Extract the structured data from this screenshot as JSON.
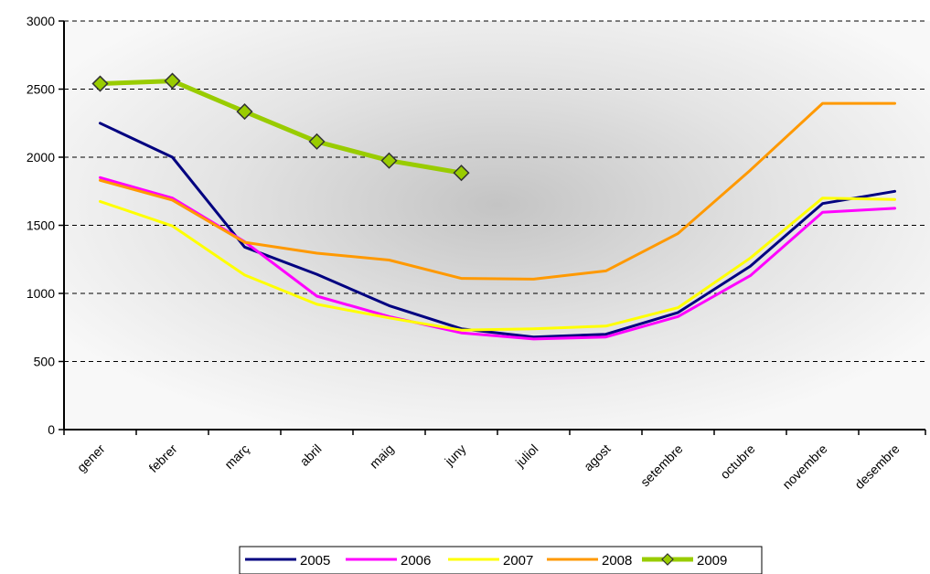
{
  "chart_data": {
    "type": "line",
    "title": "",
    "xlabel": "",
    "ylabel": "",
    "ylim": [
      0,
      3000
    ],
    "yticks": [
      0,
      500,
      1000,
      1500,
      2000,
      2500,
      3000
    ],
    "y_tick_labels": [
      "0",
      "500",
      "1000",
      "1500",
      "2000",
      "2500",
      "3000"
    ],
    "grid": "horizontal dashed",
    "legend_position": "bottom",
    "categories": [
      "gener",
      "febrer",
      "març",
      "abril",
      "maig",
      "juny",
      "juliol",
      "agost",
      "setembre",
      "octubre",
      "novembre",
      "desembre"
    ],
    "series": [
      {
        "name": "2005",
        "color": "#000080",
        "marker": "none",
        "values": [
          2250,
          2000,
          1340,
          1140,
          910,
          740,
          680,
          700,
          860,
          1200,
          1660,
          1750
        ]
      },
      {
        "name": "2006",
        "color": "#FF00FF",
        "marker": "none",
        "values": [
          1850,
          1700,
          1380,
          980,
          830,
          710,
          665,
          680,
          830,
          1130,
          1595,
          1625
        ]
      },
      {
        "name": "2007",
        "color": "#FFFF00",
        "marker": "none",
        "values": [
          1675,
          1495,
          1135,
          920,
          820,
          730,
          740,
          760,
          895,
          1260,
          1700,
          1690
        ]
      },
      {
        "name": "2008",
        "color": "#FF9900",
        "marker": "none",
        "values": [
          1830,
          1685,
          1375,
          1295,
          1245,
          1110,
          1105,
          1165,
          1440,
          1905,
          2395,
          2395
        ]
      },
      {
        "name": "2009",
        "color": "#99CC00",
        "marker": "diamond",
        "values": [
          2540,
          2560,
          2335,
          2115,
          1975,
          1885,
          null,
          null,
          null,
          null,
          null,
          null
        ]
      }
    ]
  }
}
